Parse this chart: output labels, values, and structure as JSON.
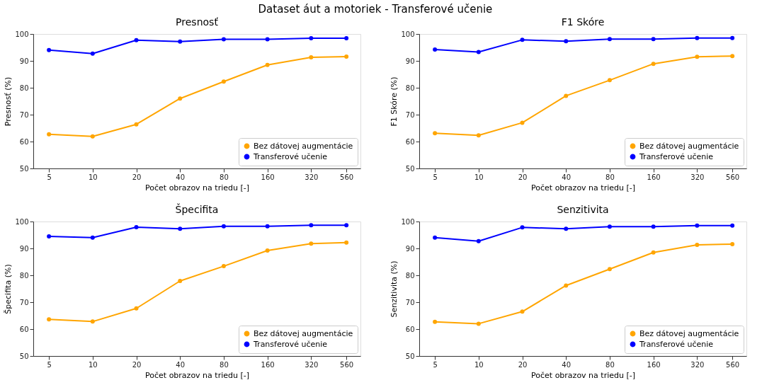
{
  "chart_data": [
    {
      "type": "line",
      "title": "Presnosť",
      "annotations": [
        "Dataset áut a motoriek - Transferové učenie"
      ],
      "xlabel": "Počet obrazov na triedu [-]",
      "ylabel": "Presnosť (%)",
      "x": [
        5,
        10,
        20,
        40,
        80,
        160,
        320,
        560
      ],
      "log": "x",
      "xlim": [
        3.9,
        700
      ],
      "xticks": [
        5,
        10,
        20,
        40,
        80,
        160,
        320,
        560
      ],
      "ylim": [
        50,
        100
      ],
      "yticks": [
        50,
        60,
        70,
        80,
        90,
        100
      ],
      "grid": false,
      "legend": "bottom right",
      "marker": "circle",
      "line_style": "solid",
      "series": [
        {
          "name": "Bez dátovej augmentácie",
          "color": "#ffa500",
          "values": [
            62.7,
            61.9,
            66.4,
            76.0,
            82.3,
            88.5,
            91.3,
            91.6
          ]
        },
        {
          "name": "Transferové učenie",
          "color": "#0000ff",
          "values": [
            94.0,
            92.7,
            97.7,
            97.2,
            98.0,
            98.0,
            98.4,
            98.4
          ]
        }
      ]
    },
    {
      "type": "line",
      "title": "F1 Skóre",
      "xlabel": "Počet obrazov na triedu [-]",
      "ylabel": "F1 Skóre (%)",
      "x": [
        5,
        10,
        20,
        40,
        80,
        160,
        320,
        560
      ],
      "log": "x",
      "xlim": [
        3.9,
        700
      ],
      "xticks": [
        5,
        10,
        20,
        40,
        80,
        160,
        320,
        560
      ],
      "ylim": [
        50,
        100
      ],
      "yticks": [
        50,
        60,
        70,
        80,
        90,
        100
      ],
      "grid": false,
      "legend": "bottom right",
      "marker": "circle",
      "line_style": "solid",
      "series": [
        {
          "name": "Bez dátovej augmentácie",
          "color": "#ffa500",
          "values": [
            63.1,
            62.3,
            67.0,
            77.0,
            82.8,
            88.9,
            91.5,
            91.8
          ]
        },
        {
          "name": "Transferové učenie",
          "color": "#0000ff",
          "values": [
            94.2,
            93.3,
            97.8,
            97.3,
            98.1,
            98.1,
            98.5,
            98.5
          ]
        }
      ]
    },
    {
      "type": "line",
      "title": "Špecifita",
      "xlabel": "Počet obrazov na triedu [-]",
      "ylabel": "Špecifita (%)",
      "x": [
        5,
        10,
        20,
        40,
        80,
        160,
        320,
        560
      ],
      "log": "x",
      "xlim": [
        3.9,
        700
      ],
      "xticks": [
        5,
        10,
        20,
        40,
        80,
        160,
        320,
        560
      ],
      "ylim": [
        50,
        100
      ],
      "yticks": [
        50,
        60,
        70,
        80,
        90,
        100
      ],
      "grid": false,
      "legend": "bottom right",
      "marker": "circle",
      "line_style": "solid",
      "series": [
        {
          "name": "Bez dátovej augmentácie",
          "color": "#ffa500",
          "values": [
            63.6,
            62.8,
            67.7,
            77.9,
            83.4,
            89.2,
            91.8,
            92.2
          ]
        },
        {
          "name": "Transferové učenie",
          "color": "#0000ff",
          "values": [
            94.5,
            94.0,
            97.9,
            97.3,
            98.2,
            98.2,
            98.6,
            98.6
          ]
        }
      ]
    },
    {
      "type": "line",
      "title": "Senzitivita",
      "xlabel": "Počet obrazov na triedu [-]",
      "ylabel": "Senzitivita (%)",
      "x": [
        5,
        10,
        20,
        40,
        80,
        160,
        320,
        560
      ],
      "log": "x",
      "xlim": [
        3.9,
        700
      ],
      "xticks": [
        5,
        10,
        20,
        40,
        80,
        160,
        320,
        560
      ],
      "ylim": [
        50,
        100
      ],
      "yticks": [
        50,
        60,
        70,
        80,
        90,
        100
      ],
      "grid": false,
      "legend": "bottom right",
      "marker": "circle",
      "line_style": "solid",
      "series": [
        {
          "name": "Bez dátovej augmentácie",
          "color": "#ffa500",
          "values": [
            62.7,
            62.0,
            66.5,
            76.2,
            82.3,
            88.5,
            91.3,
            91.6
          ]
        },
        {
          "name": "Transferové učenie",
          "color": "#0000ff",
          "values": [
            94.0,
            92.7,
            97.8,
            97.3,
            98.1,
            98.1,
            98.5,
            98.5
          ]
        }
      ]
    }
  ]
}
